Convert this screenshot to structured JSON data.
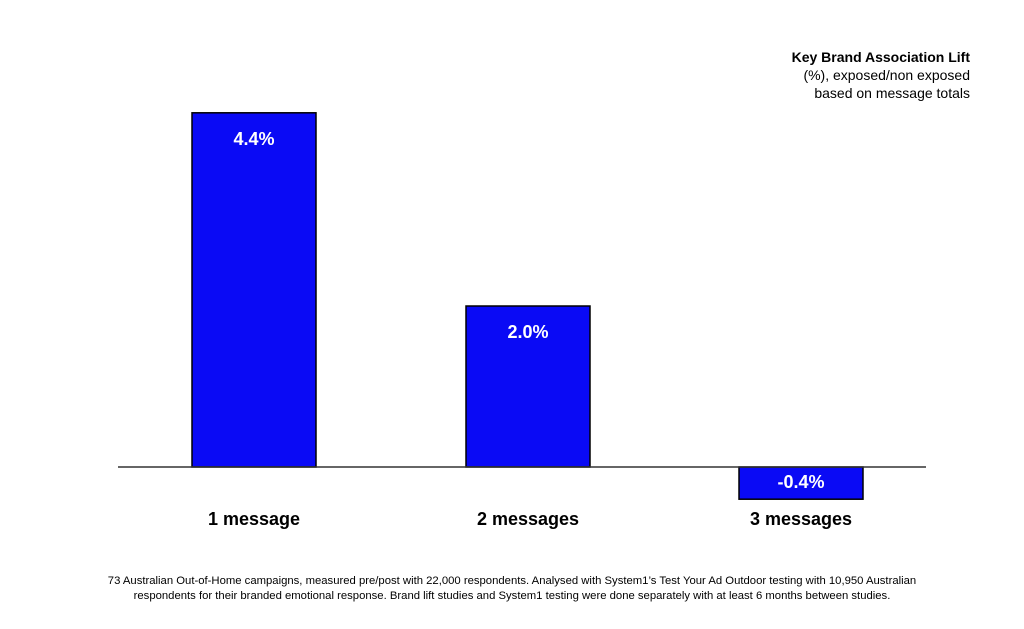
{
  "legend": {
    "title": "Key Brand Association Lift",
    "line1": "(%), exposed/non exposed",
    "line2": "based on message totals"
  },
  "footnote": {
    "line1": "73 Australian Out-of-Home campaigns, measured pre/post with 22,000 respondents. Analysed with System1’s Test Your Ad Outdoor testing with 10,950 Australian",
    "line2": "respondents for their branded emotional response. Brand lift studies and System1 testing were done separately with at least 6 months between studies."
  },
  "colors": {
    "bar": "#0a0af5",
    "bar_label": "#ffffff",
    "axis": "#333333"
  },
  "chart_data": {
    "type": "bar",
    "title": "Key Brand Association Lift",
    "categories": [
      "1 message",
      "2 messages",
      "3 messages"
    ],
    "values": [
      4.4,
      2.0,
      -0.4
    ],
    "value_labels": [
      "4.4%",
      "2.0%",
      "-0.4%"
    ],
    "ylim": [
      -0.4,
      4.4
    ],
    "grid": false
  }
}
